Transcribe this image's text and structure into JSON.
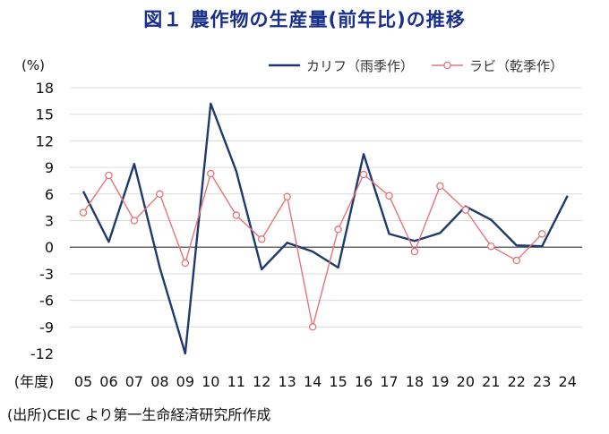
{
  "title": "図１ 農作物の生産量(前年比)の推移",
  "source": "(出所)CEIC より第一生命経済研究所作成",
  "chart_data": {
    "type": "line",
    "title": "図１ 農作物の生産量(前年比)の推移",
    "ylabel": "(%)",
    "xlabel": "(年度)",
    "categories": [
      "05",
      "06",
      "07",
      "08",
      "09",
      "10",
      "11",
      "12",
      "13",
      "14",
      "15",
      "16",
      "17",
      "18",
      "19",
      "20",
      "21",
      "22",
      "23",
      "24"
    ],
    "ylim": [
      -12,
      18
    ],
    "yticks": [
      18,
      15,
      12,
      9,
      6,
      3,
      0,
      -3,
      -6,
      -9,
      -12
    ],
    "legend_position": "top-right",
    "grid": true,
    "series": [
      {
        "name": "カリフ（雨季作）",
        "color": "#1f3a6e",
        "marker": "none",
        "values": [
          6.3,
          0.6,
          9.4,
          -2.3,
          -12.0,
          16.2,
          8.6,
          -2.5,
          0.5,
          -0.5,
          -2.3,
          10.5,
          1.5,
          0.7,
          1.6,
          4.6,
          3.1,
          0.2,
          0.1,
          5.8
        ]
      },
      {
        "name": "ラビ（乾季作）",
        "color": "#e8737a",
        "marker": "circle",
        "values": [
          3.9,
          8.1,
          3.0,
          6.0,
          -1.8,
          8.3,
          3.6,
          0.9,
          5.7,
          -9.0,
          2.0,
          8.2,
          5.8,
          -0.5,
          6.9,
          4.2,
          0.1,
          -1.5,
          1.5,
          null
        ]
      }
    ]
  }
}
